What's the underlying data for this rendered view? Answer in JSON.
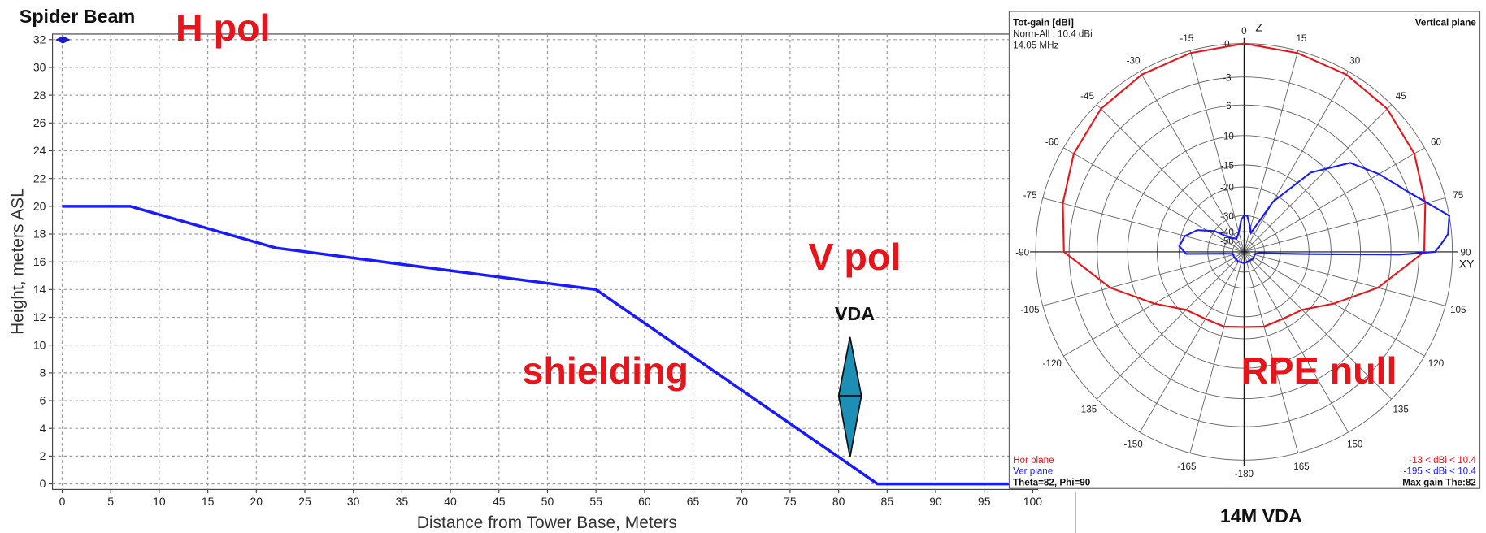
{
  "chart_data": [
    {
      "type": "line",
      "title": "Spider Beam",
      "x_label": "Distance from Tower Base, Meters",
      "y_label": "Height, meters ASL",
      "x": [
        0,
        7,
        22,
        55,
        84,
        100
      ],
      "values": [
        20,
        20,
        17,
        14,
        0,
        0
      ],
      "color": "#1a1aff",
      "xlim": [
        -1,
        100.5
      ],
      "ylim": [
        -0.4,
        32.4
      ],
      "xticks": [
        0,
        5,
        10,
        15,
        20,
        25,
        30,
        35,
        40,
        45,
        50,
        55,
        60,
        65,
        70,
        75,
        80,
        85,
        90,
        95,
        100
      ],
      "yticks": [
        0,
        2,
        4,
        6,
        8,
        10,
        12,
        14,
        16,
        18,
        20,
        22,
        24,
        26,
        28,
        30,
        32
      ],
      "grid": true,
      "annotations": [
        "H pol",
        "V pol",
        "shielding",
        "VDA"
      ]
    },
    {
      "type": "polar",
      "title": "Tot-gain [dBi]",
      "subtitle": [
        "Norm-All : 10.4 dBi",
        "14.05 MHz"
      ],
      "plane": "Vertical plane",
      "axis_labels": [
        "Z",
        "XY"
      ],
      "rticks": [
        0,
        -3,
        -6,
        -10,
        -15,
        -20,
        -30,
        -40,
        -50
      ],
      "thetaticks": [
        0,
        15,
        30,
        45,
        60,
        75,
        90,
        105,
        120,
        135,
        150,
        165,
        -180,
        -165,
        -150,
        -135,
        -120,
        -105,
        -90,
        -75,
        -60,
        -45,
        -30,
        -15
      ],
      "series": [
        {
          "name": "Hor plane",
          "color": "#e8141c",
          "range": "-13 < dBi < 10.4",
          "theta": [
            -180,
            -165,
            -150,
            -135,
            -120,
            -105,
            -90,
            -75,
            -60,
            -45,
            -30,
            -15,
            0,
            15,
            30,
            45,
            60,
            75,
            90,
            105,
            120,
            135,
            150,
            165,
            180
          ],
          "values": [
            -17.5,
            -17,
            -17,
            -16,
            -12,
            -7,
            -2.5,
            -1.8,
            -1,
            -0.5,
            -0.3,
            -0.2,
            0,
            -0.2,
            -0.3,
            -0.5,
            -1,
            -1.8,
            -2.5,
            -7,
            -12,
            -16,
            -17,
            -17,
            -17.5
          ]
        },
        {
          "name": "Ver plane",
          "color": "#1a1aff",
          "range": "-195 < dBi < 10.4",
          "theta": [
            -180,
            -150,
            -120,
            -100,
            -95,
            -92,
            -85,
            -75,
            -65,
            -55,
            -45,
            -30,
            -15,
            -5,
            0,
            5,
            12,
            20,
            30,
            40,
            50,
            60,
            70,
            80,
            85,
            88,
            90,
            91,
            92,
            95,
            100,
            130,
            180
          ],
          "values": [
            -50,
            -50,
            -50,
            -50,
            -40,
            -22,
            -20,
            -21,
            -24,
            -30,
            -40,
            -45,
            -40,
            -32,
            -30,
            -30,
            -35,
            -40,
            -22,
            -12,
            -7,
            -5,
            -3,
            0,
            -0.3,
            -1,
            -1.5,
            -5,
            -20,
            -45,
            -50,
            -50,
            -50
          ]
        }
      ],
      "footer": [
        "Theta=82, Phi=90",
        "Max gain The:82"
      ],
      "annotation": "RPE null"
    }
  ],
  "caption": "14M VDA"
}
